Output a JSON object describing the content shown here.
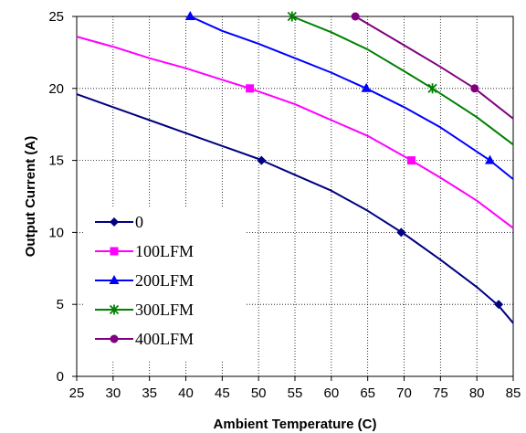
{
  "chart_data": {
    "type": "line",
    "title": "",
    "xlabel": "Ambient Temperature (C)",
    "ylabel": "Output Current (A)",
    "xlim": [
      25,
      85
    ],
    "ylim": [
      0,
      25
    ],
    "xticks": [
      "25",
      "30",
      "35",
      "40",
      "45",
      "50",
      "55",
      "60",
      "65",
      "70",
      "75",
      "80",
      "85"
    ],
    "yticks": [
      "0",
      "5",
      "10",
      "15",
      "20",
      "25"
    ],
    "grid": "dotted",
    "legend_position": "bottom-left",
    "series": [
      {
        "name": "0",
        "color": "#000080",
        "marker": "diamond",
        "curve": [
          [
            25,
            19.6
          ],
          [
            30,
            18.7
          ],
          [
            35,
            17.8
          ],
          [
            40,
            16.9
          ],
          [
            45,
            16.0
          ],
          [
            50,
            15.1
          ],
          [
            55,
            14.0
          ],
          [
            60,
            12.9
          ],
          [
            65,
            11.5
          ],
          [
            70,
            9.9
          ],
          [
            75,
            8.1
          ],
          [
            80,
            6.2
          ],
          [
            83,
            4.9
          ],
          [
            85,
            3.7
          ]
        ],
        "markers": [
          [
            50.4,
            15
          ],
          [
            69.6,
            10
          ],
          [
            83,
            5
          ]
        ]
      },
      {
        "name": "100LFM",
        "color": "#ff00ff",
        "marker": "square",
        "curve": [
          [
            25,
            23.6
          ],
          [
            30,
            22.9
          ],
          [
            35,
            22.1
          ],
          [
            40,
            21.4
          ],
          [
            45,
            20.6
          ],
          [
            48.8,
            20
          ],
          [
            55,
            18.9
          ],
          [
            60,
            17.8
          ],
          [
            65,
            16.7
          ],
          [
            71,
            15
          ],
          [
            75,
            13.8
          ],
          [
            80,
            12.2
          ],
          [
            85,
            10.3
          ]
        ],
        "markers": [
          [
            48.8,
            20
          ],
          [
            71,
            15
          ]
        ]
      },
      {
        "name": "200LFM",
        "color": "#0000ff",
        "marker": "triangle",
        "curve": [
          [
            40.6,
            25
          ],
          [
            45,
            24.0
          ],
          [
            50,
            23.1
          ],
          [
            55,
            22.1
          ],
          [
            60,
            21.1
          ],
          [
            64.8,
            20
          ],
          [
            70,
            18.7
          ],
          [
            75,
            17.3
          ],
          [
            81.8,
            15
          ],
          [
            85,
            13.7
          ]
        ],
        "markers": [
          [
            40.6,
            25
          ],
          [
            64.8,
            20
          ],
          [
            81.8,
            15
          ]
        ]
      },
      {
        "name": "300LFM",
        "color": "#008000",
        "marker": "star",
        "curve": [
          [
            54.6,
            25
          ],
          [
            60,
            23.9
          ],
          [
            65,
            22.7
          ],
          [
            70,
            21.2
          ],
          [
            73.9,
            20
          ],
          [
            80,
            18.0
          ],
          [
            85,
            16.1
          ]
        ],
        "markers": [
          [
            54.6,
            25
          ],
          [
            73.9,
            20
          ]
        ]
      },
      {
        "name": "400LFM",
        "color": "#800080",
        "marker": "circle",
        "curve": [
          [
            63.3,
            25
          ],
          [
            70,
            23.0
          ],
          [
            75,
            21.5
          ],
          [
            79.7,
            20
          ],
          [
            85,
            17.9
          ]
        ],
        "markers": [
          [
            63.3,
            25
          ],
          [
            79.7,
            20
          ]
        ]
      }
    ]
  }
}
